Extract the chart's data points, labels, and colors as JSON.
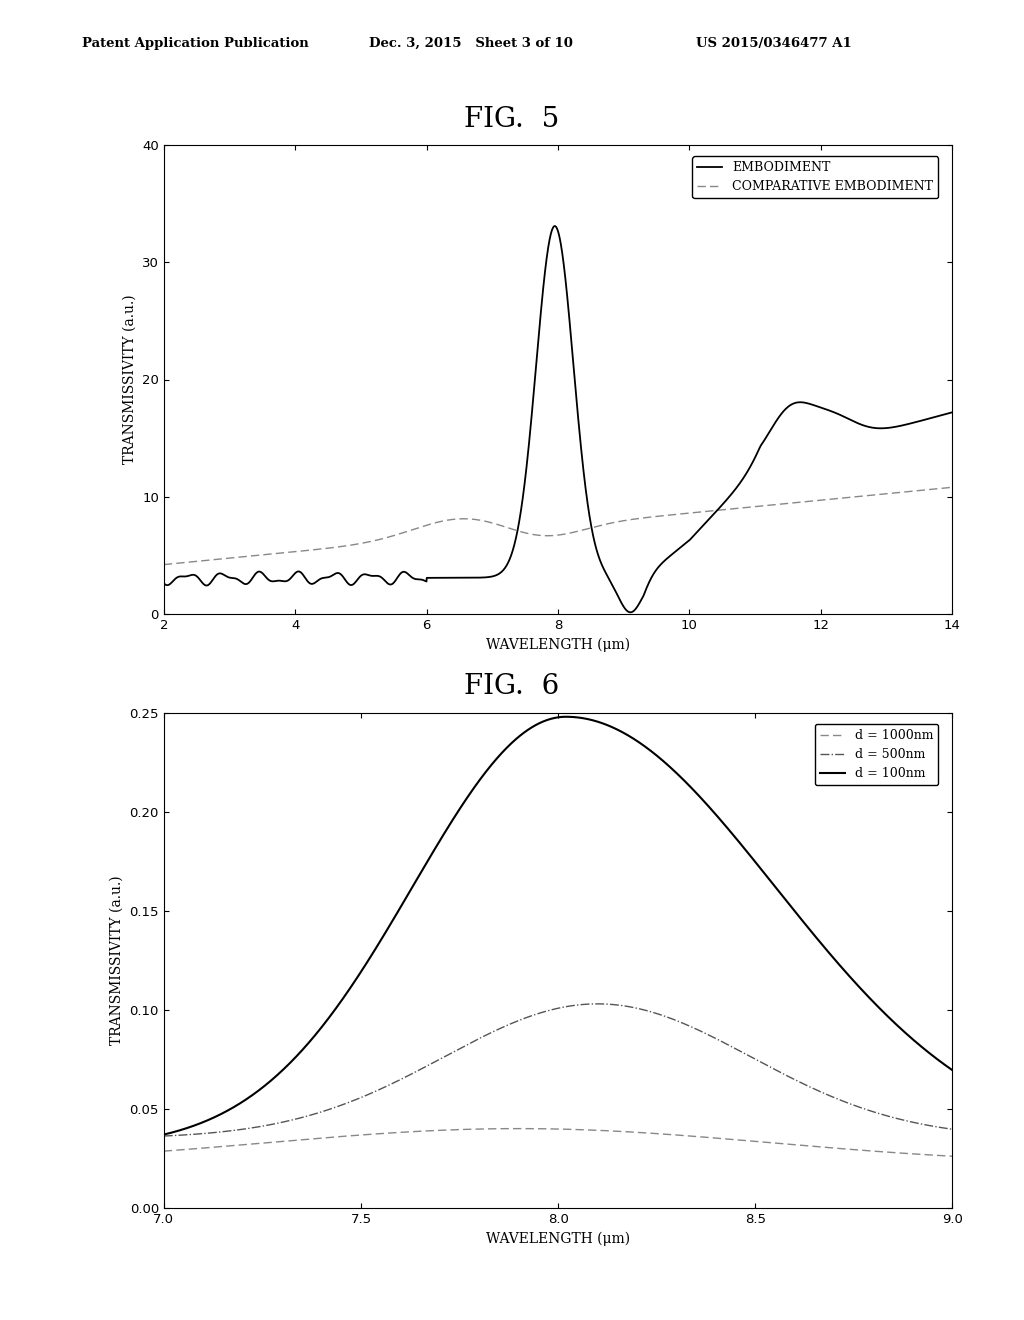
{
  "fig5_title": "FIG.  5",
  "fig6_title": "FIG.  6",
  "header_left": "Patent Application Publication",
  "header_mid": "Dec. 3, 2015   Sheet 3 of 10",
  "header_right": "US 2015/0346477 A1",
  "fig5": {
    "xlim": [
      2,
      14
    ],
    "ylim": [
      0,
      40
    ],
    "xticks": [
      2,
      4,
      6,
      8,
      10,
      12,
      14
    ],
    "yticks": [
      0,
      10,
      20,
      30,
      40
    ],
    "xlabel": "WAVELENGTH (μm)",
    "ylabel": "TRANSMISSIVITY (a.u.)",
    "legend": [
      "EMBODIMENT",
      "COMPARATIVE EMBODIMENT"
    ]
  },
  "fig6": {
    "xlim": [
      7.0,
      9.0
    ],
    "ylim": [
      0.0,
      0.25
    ],
    "xticks": [
      7.0,
      7.5,
      8.0,
      8.5,
      9.0
    ],
    "yticks": [
      0.0,
      0.05,
      0.1,
      0.15,
      0.2,
      0.25
    ],
    "xlabel": "WAVELENGTH (μm)",
    "ylabel": "TRANSMISSIVITY (a.u.)",
    "legend": [
      "d = 1000nm",
      "d = 500nm",
      "d = 100nm"
    ]
  },
  "background_color": "#ffffff"
}
